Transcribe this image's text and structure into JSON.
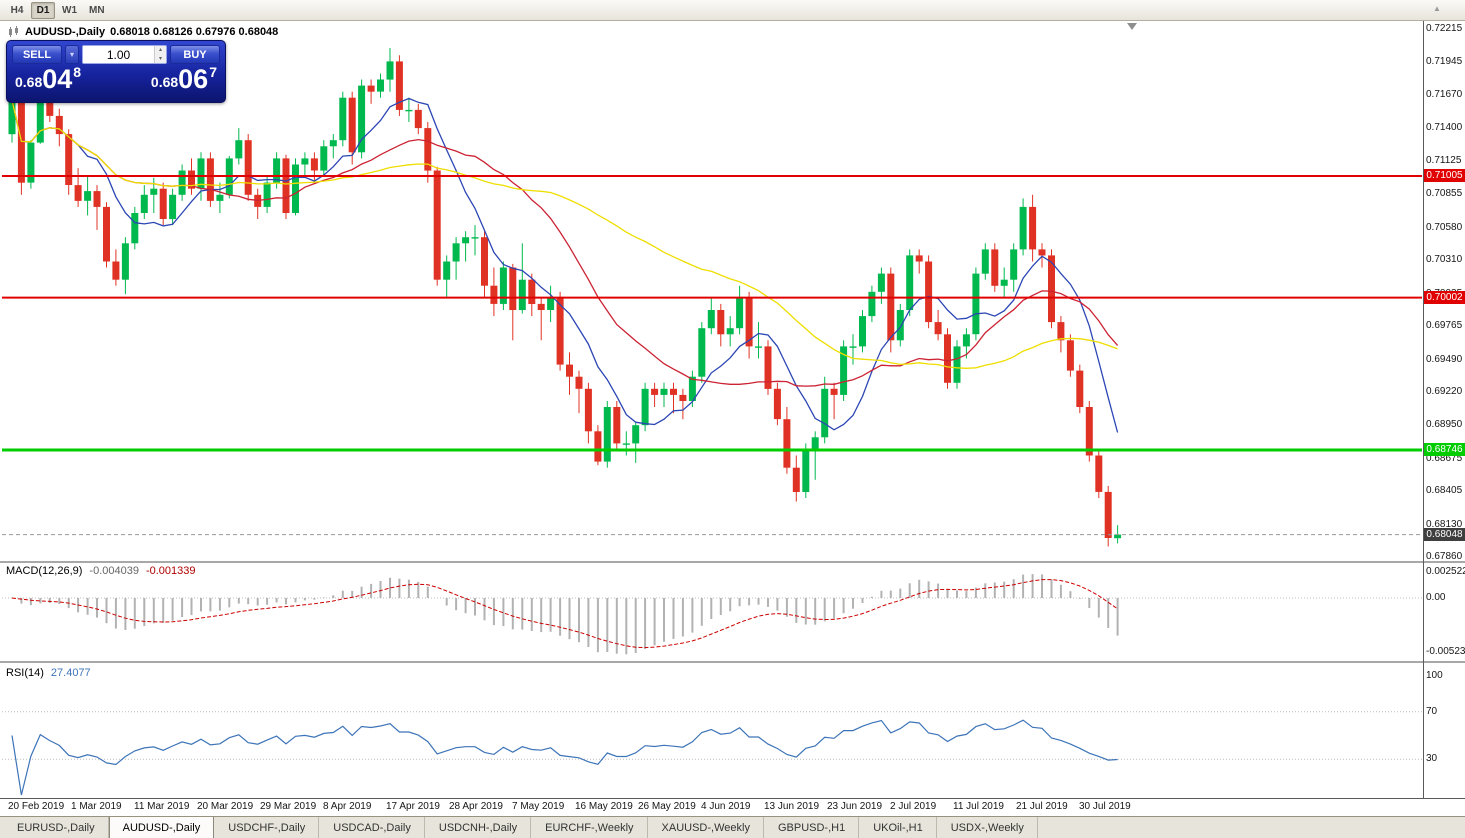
{
  "toolbar": {
    "timeframes": [
      "H4",
      "D1",
      "W1",
      "MN"
    ],
    "active": "D1"
  },
  "window": {
    "title": "AUDUSD-,Daily",
    "ohlc": "0.68018 0.68126 0.67976 0.68048"
  },
  "trade_panel": {
    "sell_label": "SELL",
    "buy_label": "BUY",
    "volume": "1.00",
    "sell_price": {
      "prefix": "0.68",
      "big": "04",
      "sup": "8"
    },
    "buy_price": {
      "prefix": "0.68",
      "big": "06",
      "sup": "7"
    }
  },
  "price_axis": [
    "0.72215",
    "0.71945",
    "0.71670",
    "0.71400",
    "0.71125",
    "0.70855",
    "0.70580",
    "0.70310",
    "0.70035",
    "0.69765",
    "0.69490",
    "0.69220",
    "0.68950",
    "0.68675",
    "0.68405",
    "0.68130",
    "0.67860"
  ],
  "levels": {
    "resistance1": {
      "price": 0.71005,
      "label": "0.71005",
      "color": "#e00000"
    },
    "resistance2": {
      "price": 0.70002,
      "label": "0.70002",
      "color": "#e00000"
    },
    "support": {
      "price": 0.68746,
      "label": "0.68746",
      "color": "#00cc00"
    },
    "current": {
      "price": 0.68048,
      "label": "0.68048",
      "color": "#3f3f3f"
    }
  },
  "macd_panel": {
    "name": "MACD(12,26,9)",
    "value_main": "-0.004039",
    "value_signal": "-0.001339",
    "axis": [
      "0.002522",
      "0.00",
      "-0.005234"
    ]
  },
  "rsi_panel": {
    "name": "RSI(14)",
    "value": "27.4077",
    "axis": [
      "100",
      "70",
      "30"
    ],
    "levels": [
      70,
      30
    ],
    "color": "#3d74b8"
  },
  "time_axis": [
    "20 Feb 2019",
    "1 Mar 2019",
    "11 Mar 2019",
    "20 Mar 2019",
    "29 Mar 2019",
    "8 Apr 2019",
    "17 Apr 2019",
    "28 Apr 2019",
    "7 May 2019",
    "16 May 2019",
    "26 May 2019",
    "4 Jun 2019",
    "13 Jun 2019",
    "23 Jun 2019",
    "2 Jul 2019",
    "11 Jul 2019",
    "21 Jul 2019",
    "30 Jul 2019"
  ],
  "tabs": [
    {
      "label": "EURUSD-,Daily",
      "active": false
    },
    {
      "label": "AUDUSD-,Daily",
      "active": true
    },
    {
      "label": "USDCHF-,Daily",
      "active": false
    },
    {
      "label": "USDCAD-,Daily",
      "active": false
    },
    {
      "label": "USDCNH-,Daily",
      "active": false
    },
    {
      "label": "EURCHF-,Weekly",
      "active": false
    },
    {
      "label": "XAUUSD-,Weekly",
      "active": false
    },
    {
      "label": "GBPUSD-,H1",
      "active": false
    },
    {
      "label": "UKOil-,H1",
      "active": false
    },
    {
      "label": "USDX-,Weekly",
      "active": false
    }
  ],
  "chart_data": {
    "type": "candlestick",
    "symbol": "AUDUSD",
    "period": "Daily",
    "colors": {
      "up": "#00b94e",
      "down": "#e03224"
    },
    "moving_averages": [
      {
        "period": 8,
        "color": "#2c46b4"
      },
      {
        "period": 20,
        "color": "#cc2233"
      },
      {
        "period": 45,
        "color": "#eede00"
      }
    ],
    "indicators": {
      "macd": {
        "fast": 12,
        "slow": 26,
        "signal": 9
      },
      "rsi": {
        "period": 14
      }
    },
    "candles": [
      [
        0.7135,
        0.7168,
        0.7128,
        0.7163
      ],
      [
        0.7163,
        0.7165,
        0.7085,
        0.7095
      ],
      [
        0.7095,
        0.713,
        0.709,
        0.7128
      ],
      [
        0.7128,
        0.7175,
        0.7127,
        0.7165
      ],
      [
        0.7165,
        0.7171,
        0.7145,
        0.715
      ],
      [
        0.715,
        0.7156,
        0.7125,
        0.7135
      ],
      [
        0.7135,
        0.7139,
        0.7085,
        0.7093
      ],
      [
        0.7093,
        0.7107,
        0.7075,
        0.708
      ],
      [
        0.708,
        0.71,
        0.7068,
        0.7088
      ],
      [
        0.7088,
        0.7093,
        0.7056,
        0.7075
      ],
      [
        0.7075,
        0.7079,
        0.7025,
        0.703
      ],
      [
        0.703,
        0.704,
        0.701,
        0.7015
      ],
      [
        0.7015,
        0.705,
        0.7003,
        0.7045
      ],
      [
        0.7045,
        0.7075,
        0.704,
        0.707
      ],
      [
        0.707,
        0.7093,
        0.7065,
        0.7085
      ],
      [
        0.7085,
        0.7099,
        0.707,
        0.709
      ],
      [
        0.709,
        0.7095,
        0.706,
        0.7065
      ],
      [
        0.7065,
        0.709,
        0.706,
        0.7085
      ],
      [
        0.7085,
        0.711,
        0.708,
        0.7105
      ],
      [
        0.7105,
        0.7115,
        0.7085,
        0.709
      ],
      [
        0.709,
        0.712,
        0.708,
        0.7115
      ],
      [
        0.7115,
        0.712,
        0.7075,
        0.708
      ],
      [
        0.708,
        0.7095,
        0.707,
        0.7085
      ],
      [
        0.7085,
        0.7117,
        0.7082,
        0.7115
      ],
      [
        0.7115,
        0.714,
        0.711,
        0.713
      ],
      [
        0.713,
        0.7135,
        0.708,
        0.7085
      ],
      [
        0.7085,
        0.709,
        0.7065,
        0.7075
      ],
      [
        0.7075,
        0.71,
        0.707,
        0.7095
      ],
      [
        0.7095,
        0.712,
        0.709,
        0.7115
      ],
      [
        0.7115,
        0.7118,
        0.7065,
        0.707
      ],
      [
        0.707,
        0.7115,
        0.7068,
        0.711
      ],
      [
        0.711,
        0.712,
        0.71,
        0.7115
      ],
      [
        0.7115,
        0.712,
        0.7095,
        0.7105
      ],
      [
        0.7105,
        0.713,
        0.71,
        0.7125
      ],
      [
        0.7125,
        0.7135,
        0.7115,
        0.713
      ],
      [
        0.713,
        0.717,
        0.7125,
        0.7165
      ],
      [
        0.7165,
        0.717,
        0.711,
        0.712
      ],
      [
        0.712,
        0.718,
        0.7115,
        0.7175
      ],
      [
        0.7175,
        0.718,
        0.716,
        0.717
      ],
      [
        0.717,
        0.7185,
        0.7165,
        0.718
      ],
      [
        0.718,
        0.7206,
        0.717,
        0.7195
      ],
      [
        0.7195,
        0.72,
        0.715,
        0.7155
      ],
      [
        0.7155,
        0.7165,
        0.7145,
        0.7155
      ],
      [
        0.7155,
        0.716,
        0.7135,
        0.714
      ],
      [
        0.714,
        0.7145,
        0.7095,
        0.7105
      ],
      [
        0.7105,
        0.7108,
        0.701,
        0.7015
      ],
      [
        0.7015,
        0.7035,
        0.7,
        0.703
      ],
      [
        0.703,
        0.705,
        0.7015,
        0.7045
      ],
      [
        0.7045,
        0.7055,
        0.703,
        0.705
      ],
      [
        0.705,
        0.706,
        0.7035,
        0.705
      ],
      [
        0.705,
        0.7055,
        0.7,
        0.701
      ],
      [
        0.701,
        0.7025,
        0.6985,
        0.6995
      ],
      [
        0.6995,
        0.703,
        0.699,
        0.7025
      ],
      [
        0.7025,
        0.7028,
        0.6965,
        0.699
      ],
      [
        0.699,
        0.7045,
        0.6987,
        0.7015
      ],
      [
        0.7015,
        0.702,
        0.6985,
        0.6995
      ],
      [
        0.6995,
        0.7,
        0.6965,
        0.699
      ],
      [
        0.699,
        0.701,
        0.698,
        0.7
      ],
      [
        0.7,
        0.7005,
        0.694,
        0.6945
      ],
      [
        0.6945,
        0.6955,
        0.692,
        0.6935
      ],
      [
        0.6935,
        0.694,
        0.6905,
        0.6925
      ],
      [
        0.6925,
        0.693,
        0.688,
        0.689
      ],
      [
        0.689,
        0.6895,
        0.6862,
        0.6865
      ],
      [
        0.6865,
        0.6915,
        0.686,
        0.691
      ],
      [
        0.691,
        0.6915,
        0.6875,
        0.688
      ],
      [
        0.688,
        0.689,
        0.687,
        0.688
      ],
      [
        0.688,
        0.6898,
        0.6864,
        0.6895
      ],
      [
        0.6895,
        0.693,
        0.689,
        0.6925
      ],
      [
        0.6925,
        0.693,
        0.691,
        0.692
      ],
      [
        0.692,
        0.693,
        0.691,
        0.6925
      ],
      [
        0.6925,
        0.693,
        0.6905,
        0.692
      ],
      [
        0.692,
        0.6925,
        0.69,
        0.6915
      ],
      [
        0.6915,
        0.694,
        0.691,
        0.6935
      ],
      [
        0.6935,
        0.698,
        0.693,
        0.6975
      ],
      [
        0.6975,
        0.7,
        0.697,
        0.699
      ],
      [
        0.699,
        0.6995,
        0.696,
        0.697
      ],
      [
        0.697,
        0.6985,
        0.696,
        0.6975
      ],
      [
        0.6975,
        0.701,
        0.697,
        0.7
      ],
      [
        0.7,
        0.7005,
        0.695,
        0.696
      ],
      [
        0.696,
        0.698,
        0.695,
        0.696
      ],
      [
        0.696,
        0.6965,
        0.692,
        0.6925
      ],
      [
        0.6925,
        0.693,
        0.6895,
        0.69
      ],
      [
        0.69,
        0.691,
        0.6855,
        0.686
      ],
      [
        0.686,
        0.687,
        0.6832,
        0.684
      ],
      [
        0.684,
        0.688,
        0.6835,
        0.6875
      ],
      [
        0.6875,
        0.689,
        0.685,
        0.6885
      ],
      [
        0.6885,
        0.6935,
        0.688,
        0.6925
      ],
      [
        0.6925,
        0.693,
        0.69,
        0.692
      ],
      [
        0.692,
        0.6965,
        0.6915,
        0.696
      ],
      [
        0.696,
        0.697,
        0.6945,
        0.696
      ],
      [
        0.696,
        0.699,
        0.6955,
        0.6985
      ],
      [
        0.6985,
        0.701,
        0.698,
        0.7005
      ],
      [
        0.7005,
        0.7025,
        0.6995,
        0.702
      ],
      [
        0.702,
        0.7025,
        0.6955,
        0.6965
      ],
      [
        0.6965,
        0.6995,
        0.696,
        0.699
      ],
      [
        0.699,
        0.704,
        0.6985,
        0.7035
      ],
      [
        0.7035,
        0.704,
        0.702,
        0.703
      ],
      [
        0.703,
        0.7035,
        0.6975,
        0.698
      ],
      [
        0.698,
        0.699,
        0.6965,
        0.697
      ],
      [
        0.697,
        0.6975,
        0.6925,
        0.693
      ],
      [
        0.693,
        0.6965,
        0.6925,
        0.696
      ],
      [
        0.696,
        0.6975,
        0.695,
        0.697
      ],
      [
        0.697,
        0.7025,
        0.6965,
        0.702
      ],
      [
        0.702,
        0.7045,
        0.7015,
        0.704
      ],
      [
        0.704,
        0.7045,
        0.7005,
        0.701
      ],
      [
        0.701,
        0.7025,
        0.7,
        0.7015
      ],
      [
        0.7015,
        0.7045,
        0.7005,
        0.704
      ],
      [
        0.704,
        0.7082,
        0.7035,
        0.7075
      ],
      [
        0.7075,
        0.7085,
        0.703,
        0.704
      ],
      [
        0.704,
        0.7045,
        0.7025,
        0.7035
      ],
      [
        0.7035,
        0.704,
        0.6975,
        0.698
      ],
      [
        0.698,
        0.6985,
        0.6955,
        0.6965
      ],
      [
        0.6965,
        0.697,
        0.6935,
        0.694
      ],
      [
        0.694,
        0.6945,
        0.6905,
        0.691
      ],
      [
        0.691,
        0.6915,
        0.6865,
        0.687
      ],
      [
        0.687,
        0.6875,
        0.6835,
        0.684
      ],
      [
        0.684,
        0.6845,
        0.6795,
        0.6802
      ],
      [
        0.68018,
        0.68126,
        0.67976,
        0.68048
      ]
    ]
  }
}
